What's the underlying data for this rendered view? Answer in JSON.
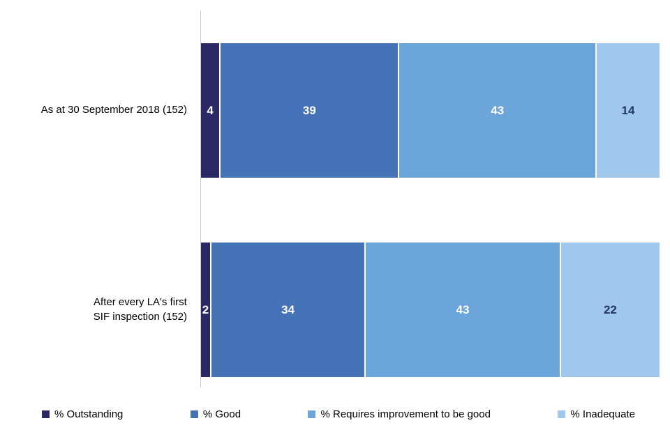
{
  "chart_data": {
    "type": "bar",
    "orientation": "horizontal",
    "stacked": true,
    "title": "",
    "xlabel": "",
    "ylabel": "",
    "xlim": [
      0,
      100
    ],
    "grid": false,
    "legend_position": "bottom",
    "categories": [
      "As at 30 September 2018 (152)",
      "After every LA's first\nSIF inspection (152)"
    ],
    "series": [
      {
        "name": "% Outstanding",
        "color": "#2a2865",
        "label_color": "#ffffff",
        "values": [
          4,
          2
        ]
      },
      {
        "name": "% Good",
        "color": "#4673b8",
        "label_color": "#ffffff",
        "values": [
          39,
          34
        ]
      },
      {
        "name": "% Requires improvement to be good",
        "color": "#6ba5dc",
        "label_color": "#ffffff",
        "values": [
          43,
          43
        ]
      },
      {
        "name": "% Inadequate",
        "color": "#a0c8ec",
        "label_color": "#233862",
        "values": [
          14,
          22
        ]
      }
    ]
  }
}
